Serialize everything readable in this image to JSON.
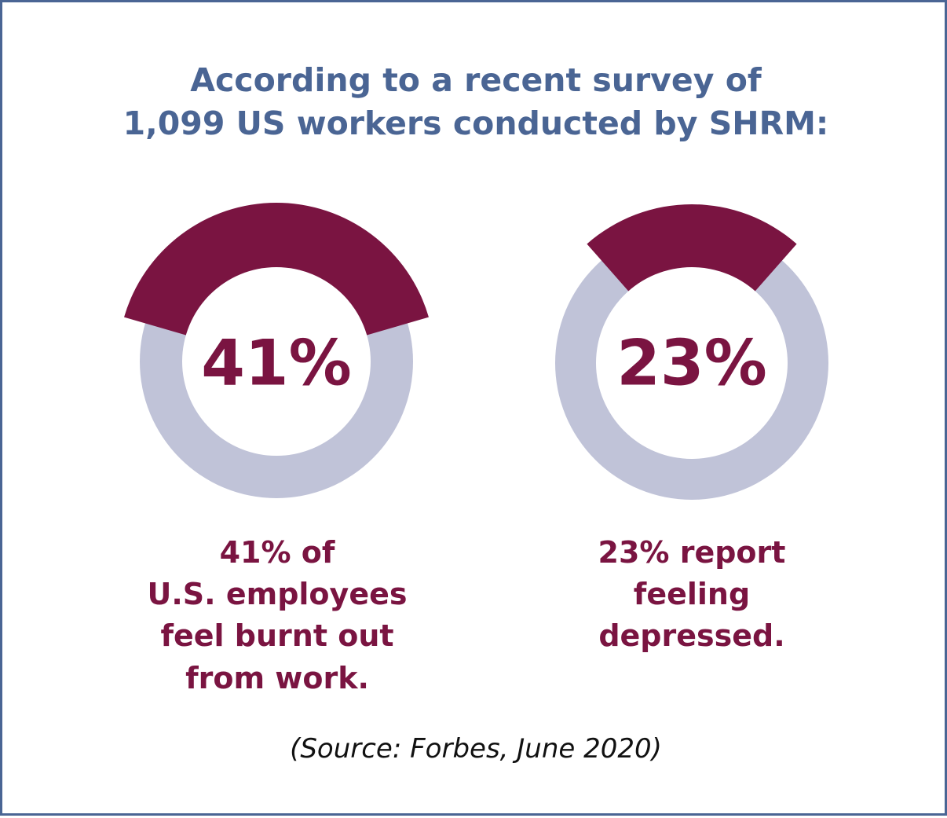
{
  "header": {
    "title_line1": "According to a recent survey of",
    "title_line2": "1,099 US workers conducted by SHRM:"
  },
  "colors": {
    "title": "#4a6594",
    "accent": "#7a1441",
    "track": "#c0c3d8",
    "border": "#4a6594"
  },
  "chart_data": [
    {
      "type": "pie",
      "value": 41,
      "label": "41%",
      "caption": [
        "41% of",
        "U.S. employees",
        "feel burnt out",
        "from work."
      ]
    },
    {
      "type": "pie",
      "value": 23,
      "label": "23%",
      "caption": [
        "23% report",
        "feeling",
        "depressed."
      ]
    }
  ],
  "footer": {
    "source": "(Source: Forbes, June 2020)"
  }
}
